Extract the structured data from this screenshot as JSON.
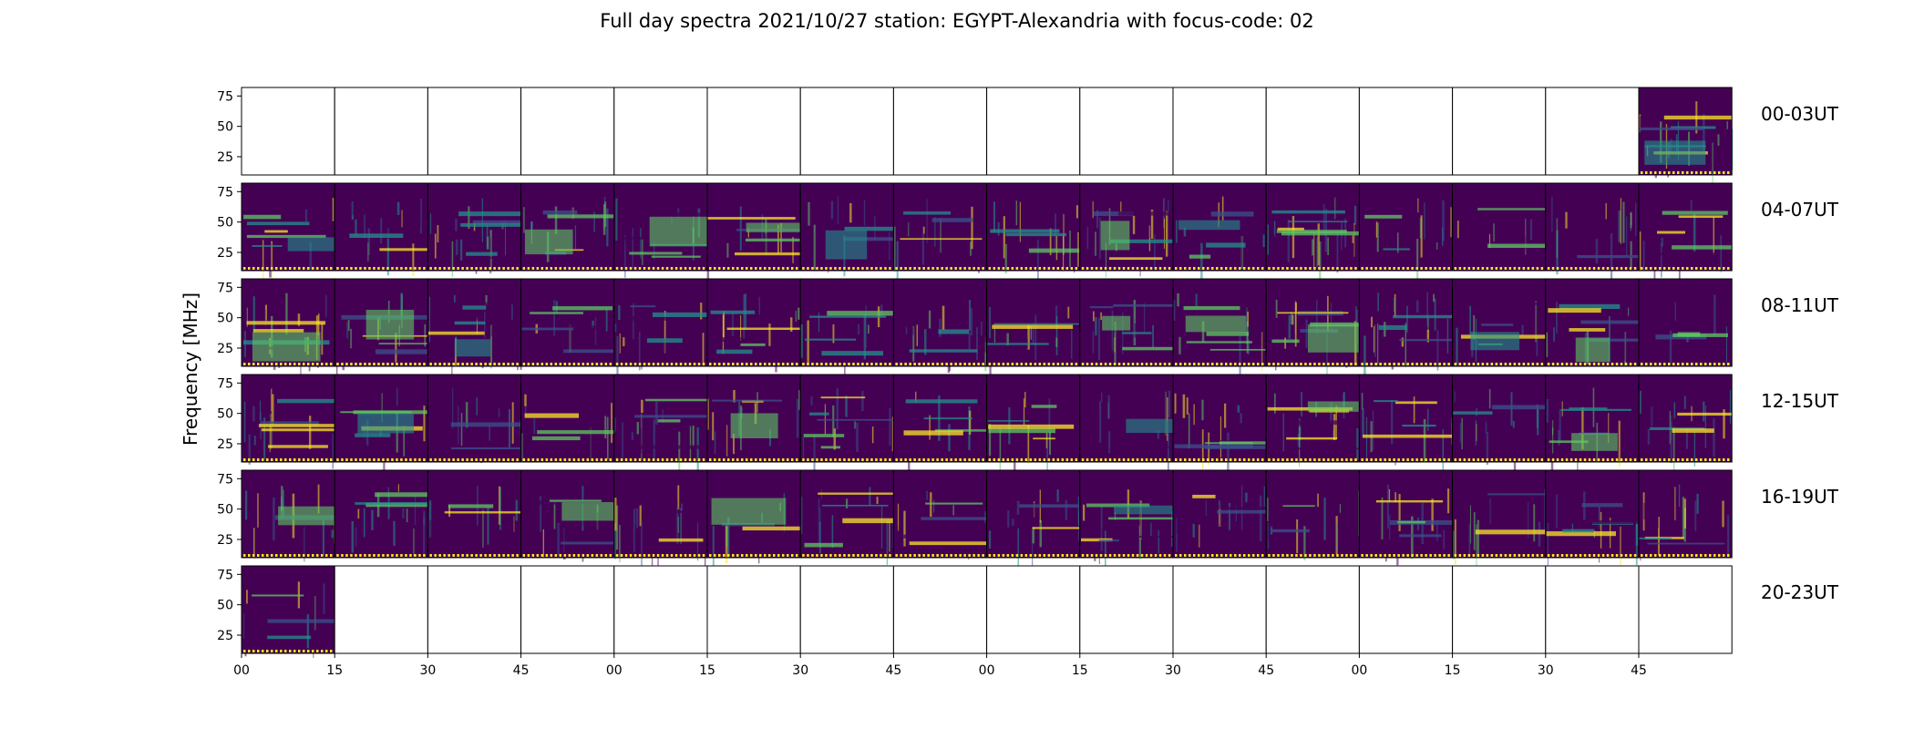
{
  "chart_data": {
    "type": "heatmap",
    "title": "Full day spectra 2021/10/27 station: EGYPT-Alexandria with focus-code: 02",
    "ylabel": "Frequency [MHz]",
    "xlabel": "",
    "y_ticks": [
      25,
      50,
      75
    ],
    "ylim": [
      10,
      82
    ],
    "x_tick_labels": [
      "00",
      "15",
      "30",
      "45",
      "00",
      "15",
      "30",
      "45",
      "00",
      "15",
      "30",
      "45",
      "00",
      "15",
      "30",
      "45"
    ],
    "panels_per_row": 16,
    "minutes_per_panel": 15,
    "rows": [
      {
        "label": "00-03UT",
        "data_panels": [
          15
        ]
      },
      {
        "label": "04-07UT",
        "data_panels": [
          0,
          1,
          2,
          3,
          4,
          5,
          6,
          7,
          8,
          9,
          10,
          11,
          12,
          13,
          14,
          15
        ]
      },
      {
        "label": "08-11UT",
        "data_panels": [
          0,
          1,
          2,
          3,
          4,
          5,
          6,
          7,
          8,
          9,
          10,
          11,
          12,
          13,
          14,
          15
        ]
      },
      {
        "label": "12-15UT",
        "data_panels": [
          0,
          1,
          2,
          3,
          4,
          5,
          6,
          7,
          8,
          9,
          10,
          11,
          12,
          13,
          14,
          15
        ]
      },
      {
        "label": "16-19UT",
        "data_panels": [
          0,
          1,
          2,
          3,
          4,
          5,
          6,
          7,
          8,
          9,
          10,
          11,
          12,
          13,
          14,
          15
        ]
      },
      {
        "label": "20-23UT",
        "data_panels": [
          0
        ]
      }
    ],
    "colormap": [
      "#440154",
      "#3b528b",
      "#21918c",
      "#5ec962",
      "#fde725"
    ],
    "grid": false
  }
}
